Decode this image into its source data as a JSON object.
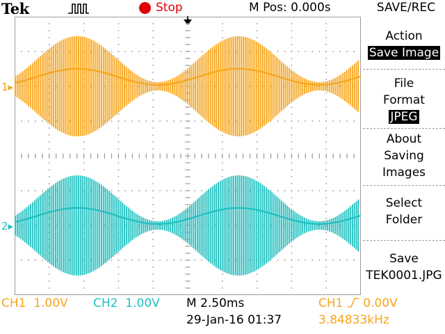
{
  "header": {
    "brand": "Tek",
    "run_state": "Stop",
    "m_pos": "M Pos: 0.000s",
    "menu_title": "SAVE/REC"
  },
  "channels": {
    "ch1_marker": "1",
    "ch2_marker": "2"
  },
  "side_menu": {
    "action_title": "Action",
    "action_value": "Save Image",
    "format_title_1": "File",
    "format_title_2": "Format",
    "format_value": "JPEG",
    "about_1": "About",
    "about_2": "Saving",
    "about_3": "Images",
    "select_1": "Select",
    "select_2": "Folder",
    "save_1": "Save",
    "save_2": "TEK0001.JPG"
  },
  "status": {
    "ch1_label": "CH1",
    "ch1_scale": "1.00V",
    "ch2_label": "CH2",
    "ch2_scale": "1.00V",
    "timebase": "M 2.50ms",
    "date": "29-Jan-16 01:37",
    "trigger_source": "CH1",
    "trigger_level": "0.00V",
    "frequency": "3.84833kHz"
  },
  "colors": {
    "ch1": "#f7a51c",
    "ch2": "#1fbfbf",
    "stop": "#e00000",
    "grid": "#9a9a9a"
  }
}
